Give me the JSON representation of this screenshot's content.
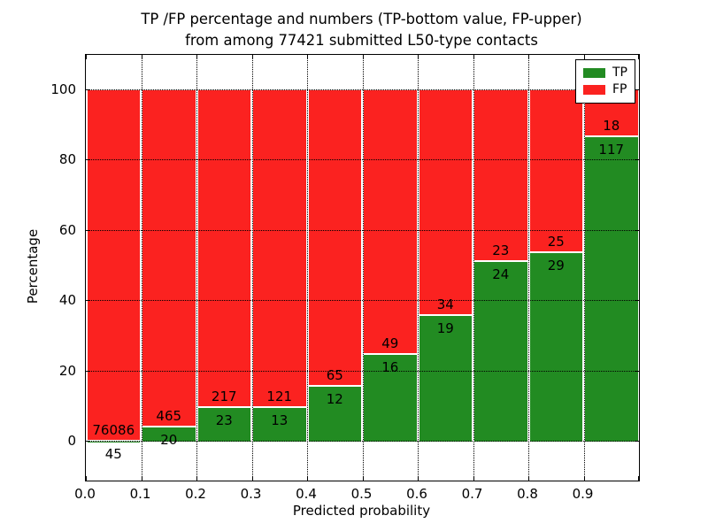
{
  "chart_data": {
    "type": "bar",
    "stacked": true,
    "normalized_to_percent": true,
    "title_line1": "TP /FP percentage and numbers (TP-bottom value, FP-upper)",
    "title_line2": "from among 77421 submitted L50-type contacts",
    "xlabel": "Predicted probability",
    "ylabel": "Percentage",
    "xlim": [
      0,
      1
    ],
    "ylim": [
      -11,
      110
    ],
    "y_ticks": [
      0,
      20,
      40,
      60,
      80,
      100
    ],
    "y_tick_labels": [
      "0",
      "20",
      "40",
      "60",
      "80",
      "100"
    ],
    "x_ticks": [
      0.0,
      0.1,
      0.2,
      0.3,
      0.4,
      0.5,
      0.6,
      0.7,
      0.8,
      0.9
    ],
    "x_tick_labels": [
      "0.0",
      "0.1",
      "0.2",
      "0.3",
      "0.4",
      "0.5",
      "0.6",
      "0.7",
      "0.8",
      "0.9"
    ],
    "grid": true,
    "colors": {
      "tp": "#228b22",
      "fp": "#fb2220",
      "grid": "#000000",
      "background": "#ffffff"
    },
    "legend": {
      "position": "upper-right",
      "entries": [
        {
          "label": "TP",
          "color": "#228b22"
        },
        {
          "label": "FP",
          "color": "#fb2220"
        }
      ]
    },
    "bins": [
      {
        "x0": 0.0,
        "x1": 0.1,
        "tp": 45,
        "fp": 76086,
        "tp_pct": 0.06
      },
      {
        "x0": 0.1,
        "x1": 0.2,
        "tp": 20,
        "fp": 465,
        "tp_pct": 4.12
      },
      {
        "x0": 0.2,
        "x1": 0.3,
        "tp": 23,
        "fp": 217,
        "tp_pct": 9.58
      },
      {
        "x0": 0.3,
        "x1": 0.4,
        "tp": 13,
        "fp": 121,
        "tp_pct": 9.7
      },
      {
        "x0": 0.4,
        "x1": 0.5,
        "tp": 12,
        "fp": 65,
        "tp_pct": 15.58
      },
      {
        "x0": 0.5,
        "x1": 0.6,
        "tp": 16,
        "fp": 49,
        "tp_pct": 24.62
      },
      {
        "x0": 0.6,
        "x1": 0.7,
        "tp": 19,
        "fp": 34,
        "tp_pct": 35.85
      },
      {
        "x0": 0.7,
        "x1": 0.8,
        "tp": 24,
        "fp": 23,
        "tp_pct": 51.06
      },
      {
        "x0": 0.8,
        "x1": 0.9,
        "tp": 29,
        "fp": 25,
        "tp_pct": 53.7
      },
      {
        "x0": 0.9,
        "x1": 1.0,
        "tp": 117,
        "fp": 18,
        "tp_pct": 86.67
      }
    ]
  }
}
